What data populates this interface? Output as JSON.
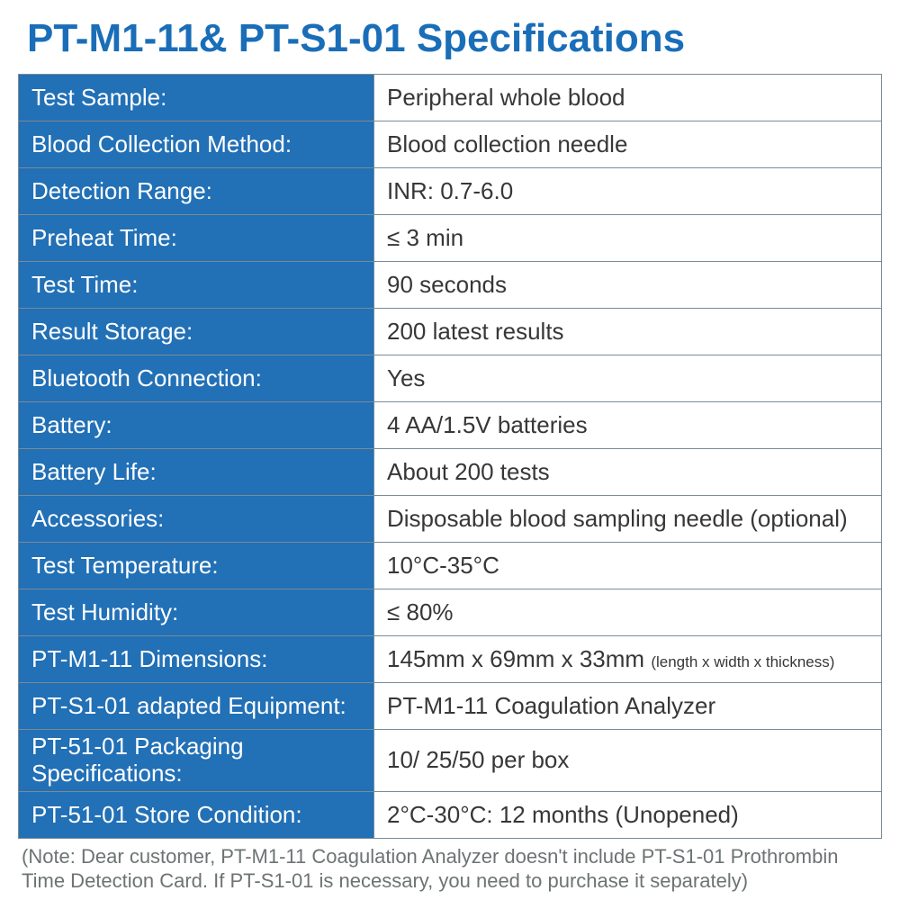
{
  "title": "PT-M1-11& PT-S1-01 Specifications",
  "colors": {
    "accent": "#1a6eb8",
    "label_bg": "#2270b6",
    "label_fg": "#ffffff",
    "value_bg": "#ffffff",
    "value_fg": "#373737",
    "border": "#7a8b95",
    "footnote": "#6d7374"
  },
  "rows": [
    {
      "label": "Test Sample:",
      "value": "Peripheral whole blood"
    },
    {
      "label": "Blood Collection Method:",
      "value": "Blood collection needle"
    },
    {
      "label": "Detection Range:",
      "value": "INR: 0.7-6.0"
    },
    {
      "label": "Preheat Time:",
      "value": "≤ 3 min"
    },
    {
      "label": "Test Time:",
      "value": "90 seconds"
    },
    {
      "label": "Result Storage:",
      "value": "200 latest results"
    },
    {
      "label": "Bluetooth Connection:",
      "value": "Yes"
    },
    {
      "label": "Battery:",
      "value": "4 AA/1.5V batteries"
    },
    {
      "label": "Battery Life:",
      "value": "About 200 tests"
    },
    {
      "label": "Accessories:",
      "value": "Disposable blood sampling needle (optional)"
    },
    {
      "label": "Test Temperature:",
      "value": "10°C-35°C"
    },
    {
      "label": "Test Humidity:",
      "value": "≤ 80%"
    },
    {
      "label": "PT-M1-11 Dimensions:",
      "value": "145mm x 69mm x 33mm",
      "value_aside": "(length x width x thickness)"
    },
    {
      "label": "PT-S1-01 adapted Equipment:",
      "value": "PT-M1-11 Coagulation Analyzer"
    },
    {
      "label": "PT-51-01 Packaging Specifications:",
      "value": "10/ 25/50 per box",
      "two_line_label": true
    },
    {
      "label": "PT-51-01 Store Condition:",
      "value": "2°C-30°C: 12 months (Unopened)"
    }
  ],
  "footnote": "(Note: Dear customer, PT-M1-11 Coagulation Analyzer doesn't include PT-S1-01 Prothrombin Time Detection Card.  If PT-S1-01 is necessary, you need to purchase it separately)"
}
